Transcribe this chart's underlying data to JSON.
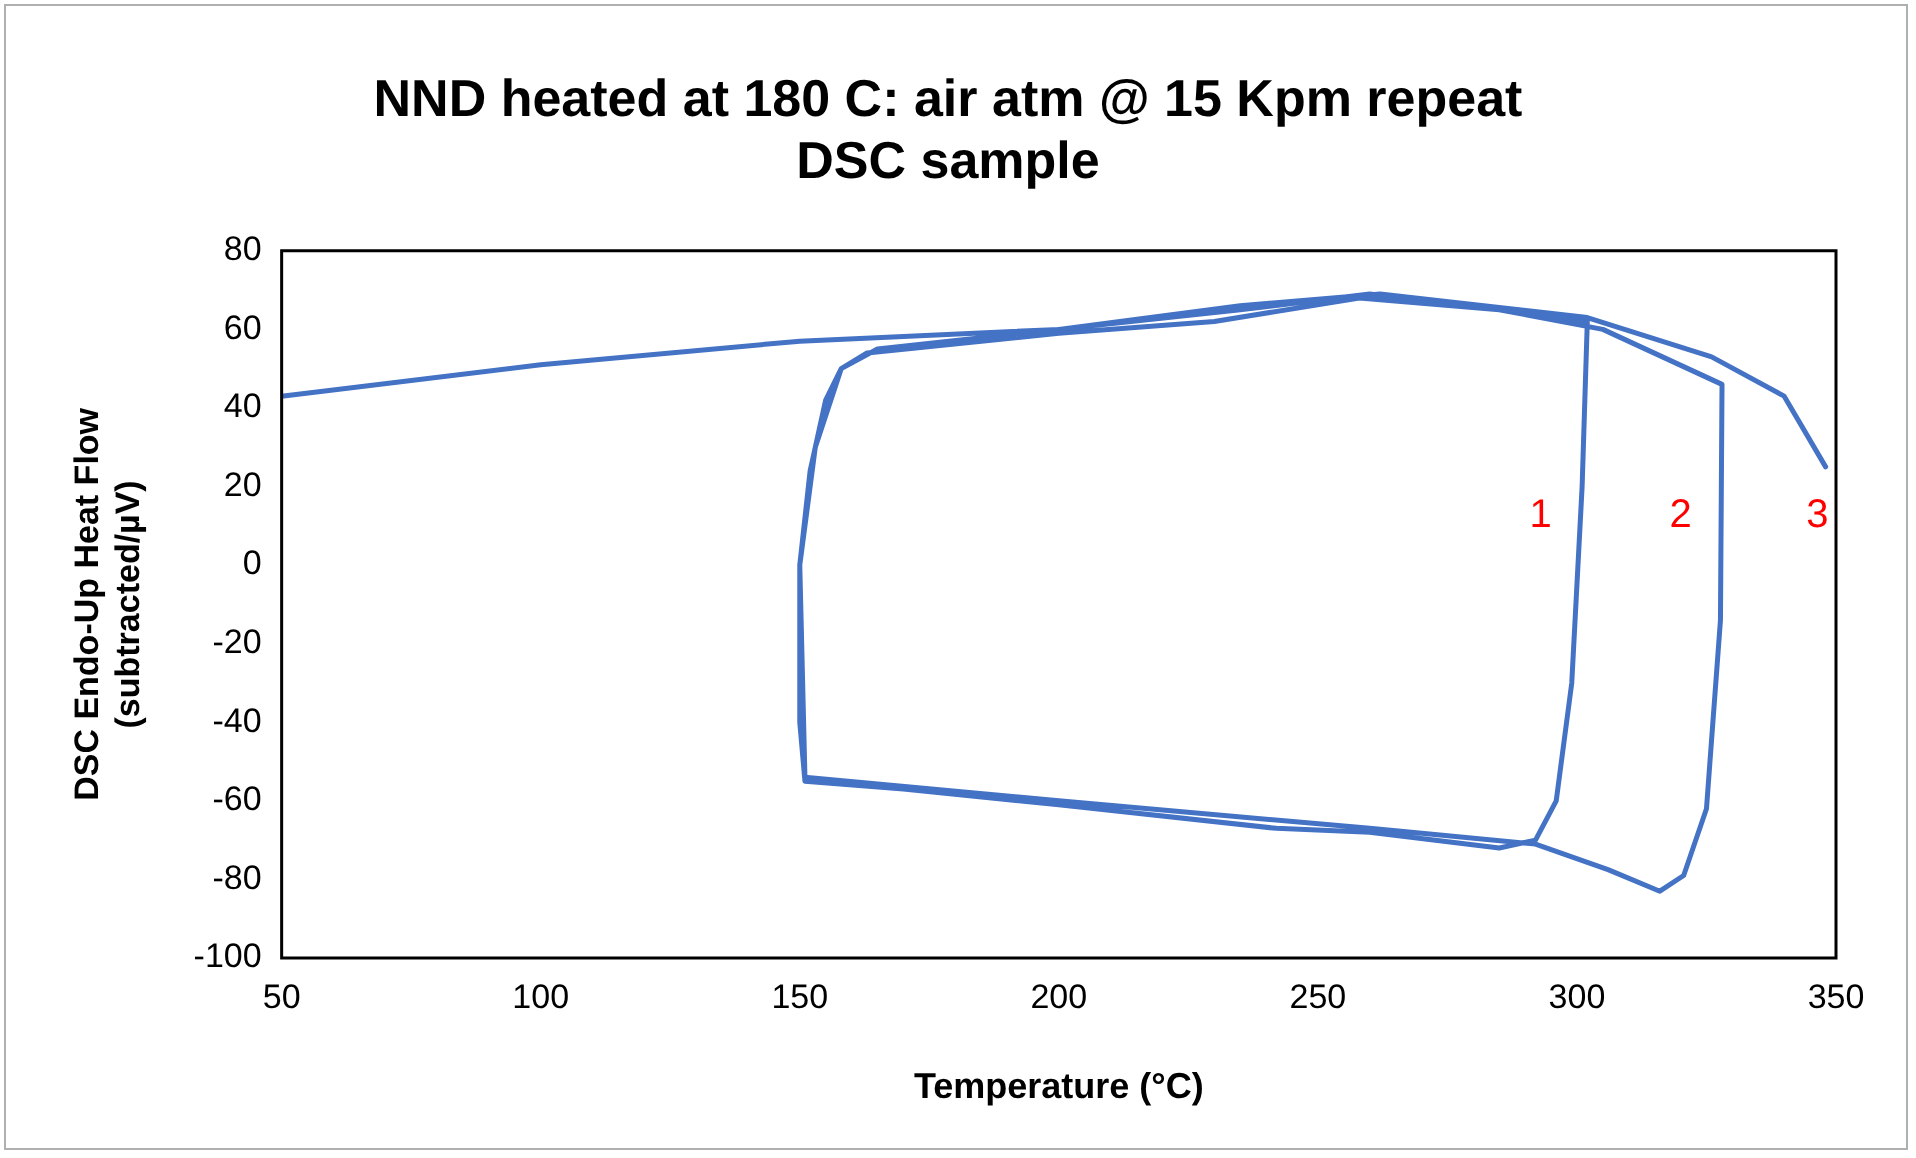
{
  "chart_data": {
    "type": "line",
    "title": "NND heated at 180 C: air atm @ 15 Kpm repeat",
    "subtitle": "DSC sample",
    "xlabel": "Temperature (°C)",
    "ylabel": "DSC Endo-Up Heat Flow (subtracted/µV)",
    "series": [
      {
        "color": "#4472c4",
        "x": [
          50,
          100,
          150,
          200,
          235,
          260,
          285,
          302,
          301,
          299,
          296,
          292,
          285,
          260,
          242,
          200,
          170,
          151,
          150,
          150,
          152,
          155,
          158,
          163,
          200,
          230,
          258,
          285,
          305,
          328,
          327.7,
          325,
          320.6,
          316,
          306,
          292,
          260,
          200,
          151,
          150,
          153,
          158,
          165,
          200,
          235,
          262,
          302,
          326,
          340,
          348
        ],
        "values": [
          43,
          51,
          57,
          60,
          65,
          69,
          65,
          62,
          20,
          -30,
          -60,
          -70,
          -72,
          -68,
          -67,
          -61,
          -57,
          -55,
          -40,
          0,
          24,
          42,
          50,
          54,
          59,
          62,
          68,
          65,
          60,
          46,
          -14,
          -62,
          -79,
          -83,
          -77.5,
          -71,
          -67,
          -60,
          -54,
          0,
          30,
          50,
          55,
          60,
          66,
          69,
          63,
          53,
          43,
          25
        ]
      }
    ],
    "annotations": [
      "1",
      "2",
      "3"
    ],
    "xlim": [
      50,
      350
    ],
    "xticks": [
      50,
      100,
      150,
      200,
      250,
      300,
      350
    ],
    "ylim": [
      -100,
      80
    ],
    "yticks": [
      -100,
      -80,
      -60,
      -40,
      -20,
      0,
      20,
      40,
      60,
      80
    ],
    "grid": false,
    "legend": false,
    "marker": "none",
    "line_style": "solid"
  }
}
